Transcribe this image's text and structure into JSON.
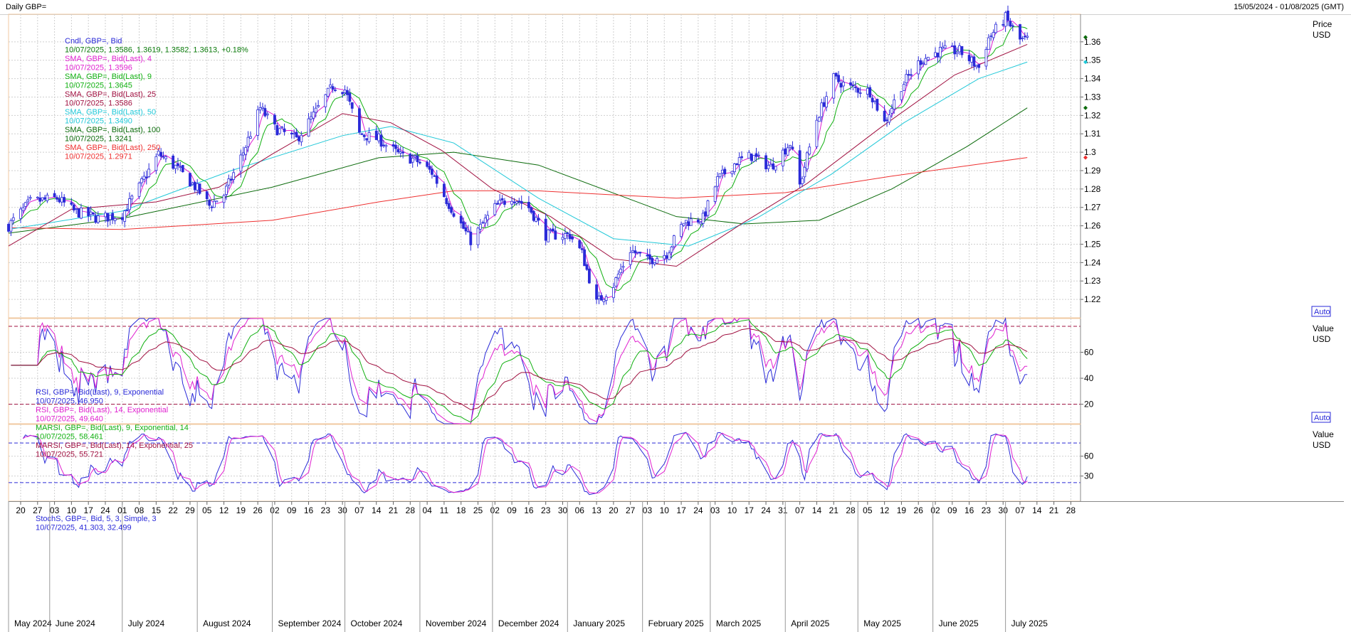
{
  "header": {
    "title": "Daily GBP=",
    "range": "15/05/2024 - 01/08/2025 (GMT)"
  },
  "chart_data": [
    {
      "type": "candlestick",
      "panel": "price",
      "unit_label": [
        "Price",
        "USD"
      ],
      "ylim": [
        1.21,
        1.375
      ],
      "yticks": [
        1.22,
        1.23,
        1.24,
        1.25,
        1.26,
        1.27,
        1.28,
        1.29,
        1.3,
        1.31,
        1.32,
        1.33,
        1.34,
        1.35,
        1.36
      ],
      "ytick_labels": [
        "1.22",
        "1.23",
        "1.24",
        "1.25",
        "1.26",
        "1.27",
        "1.28",
        "1.29",
        "1.3",
        "1.31",
        "1.32",
        "1.33",
        "1.34",
        "1.35",
        "1.36"
      ],
      "auto_label": "Auto",
      "legend": [
        {
          "name": "Cndl, GBP=, Bid",
          "value": "10/07/2025, 1.3586, 1.3619, 1.3582, 1.3613, +0.18%",
          "color": "#2a2ad8",
          "value_color": "#0a7a0a"
        },
        {
          "name": "SMA, GBP=, Bid(Last),  4",
          "value": "10/07/2025, 1.3596",
          "color": "#e020d0"
        },
        {
          "name": "SMA, GBP=, Bid(Last),  9",
          "value": "10/07/2025, 1.3645",
          "color": "#10b010"
        },
        {
          "name": "SMA, GBP=, Bid(Last),  25",
          "value": "10/07/2025, 1.3586",
          "color": "#a01040"
        },
        {
          "name": "SMA, GBP=, Bid(Last),  50",
          "value": "10/07/2025, 1.3490",
          "color": "#20c8d8"
        },
        {
          "name": "SMA, GBP=, Bid(Last),  100",
          "value": "10/07/2025, 1.3241",
          "color": "#0a6a0a"
        },
        {
          "name": "SMA, GBP=, Bid(Last),  250",
          "value": "10/07/2025, 1.2971",
          "color": "#ee3030"
        }
      ],
      "anchors": [
        {
          "x": "2024-05-15",
          "y": 1.26
        },
        {
          "x": "2024-05-24",
          "y": 1.273
        },
        {
          "x": "2024-06-04",
          "y": 1.275
        },
        {
          "x": "2024-06-11",
          "y": 1.268
        },
        {
          "x": "2024-06-21",
          "y": 1.264
        },
        {
          "x": "2024-07-01",
          "y": 1.266
        },
        {
          "x": "2024-07-08",
          "y": 1.281
        },
        {
          "x": "2024-07-16",
          "y": 1.299
        },
        {
          "x": "2024-07-23",
          "y": 1.292
        },
        {
          "x": "2024-08-01",
          "y": 1.28
        },
        {
          "x": "2024-08-06",
          "y": 1.271
        },
        {
          "x": "2024-08-12",
          "y": 1.277
        },
        {
          "x": "2024-08-20",
          "y": 1.3
        },
        {
          "x": "2024-08-27",
          "y": 1.324
        },
        {
          "x": "2024-09-02",
          "y": 1.313
        },
        {
          "x": "2024-09-11",
          "y": 1.307
        },
        {
          "x": "2024-09-18",
          "y": 1.32
        },
        {
          "x": "2024-09-26",
          "y": 1.336
        },
        {
          "x": "2024-10-01",
          "y": 1.334
        },
        {
          "x": "2024-10-07",
          "y": 1.31
        },
        {
          "x": "2024-10-15",
          "y": 1.307
        },
        {
          "x": "2024-10-24",
          "y": 1.298
        },
        {
          "x": "2024-10-30",
          "y": 1.296
        },
        {
          "x": "2024-11-06",
          "y": 1.289
        },
        {
          "x": "2024-11-12",
          "y": 1.274
        },
        {
          "x": "2024-11-22",
          "y": 1.252
        },
        {
          "x": "2024-12-02",
          "y": 1.27
        },
        {
          "x": "2024-12-09",
          "y": 1.276
        },
        {
          "x": "2024-12-16",
          "y": 1.27
        },
        {
          "x": "2024-12-23",
          "y": 1.255
        },
        {
          "x": "2025-01-02",
          "y": 1.255
        },
        {
          "x": "2025-01-07",
          "y": 1.245
        },
        {
          "x": "2025-01-13",
          "y": 1.218
        },
        {
          "x": "2025-01-20",
          "y": 1.228
        },
        {
          "x": "2025-01-27",
          "y": 1.247
        },
        {
          "x": "2025-02-03",
          "y": 1.241
        },
        {
          "x": "2025-02-11",
          "y": 1.245
        },
        {
          "x": "2025-02-18",
          "y": 1.262
        },
        {
          "x": "2025-02-26",
          "y": 1.264
        },
        {
          "x": "2025-03-04",
          "y": 1.285
        },
        {
          "x": "2025-03-12",
          "y": 1.295
        },
        {
          "x": "2025-03-18",
          "y": 1.298
        },
        {
          "x": "2025-03-26",
          "y": 1.292
        },
        {
          "x": "2025-04-03",
          "y": 1.305
        },
        {
          "x": "2025-04-07",
          "y": 1.282
        },
        {
          "x": "2025-04-14",
          "y": 1.318
        },
        {
          "x": "2025-04-21",
          "y": 1.34
        },
        {
          "x": "2025-04-28",
          "y": 1.335
        },
        {
          "x": "2025-05-06",
          "y": 1.333
        },
        {
          "x": "2025-05-12",
          "y": 1.316
        },
        {
          "x": "2025-05-19",
          "y": 1.336
        },
        {
          "x": "2025-05-27",
          "y": 1.35
        },
        {
          "x": "2025-06-04",
          "y": 1.355
        },
        {
          "x": "2025-06-12",
          "y": 1.355
        },
        {
          "x": "2025-06-20",
          "y": 1.346
        },
        {
          "x": "2025-06-24",
          "y": 1.362
        },
        {
          "x": "2025-07-01",
          "y": 1.373
        },
        {
          "x": "2025-07-07",
          "y": 1.361
        },
        {
          "x": "2025-07-10",
          "y": 1.3613
        }
      ],
      "sma": [
        {
          "name": "SMA 100",
          "color": "#0a6a0a",
          "points": [
            {
              "x": "2024-05-15",
              "y": 1.256
            },
            {
              "x": "2024-07-01",
              "y": 1.264
            },
            {
              "x": "2024-09-01",
              "y": 1.281
            },
            {
              "x": "2024-10-15",
              "y": 1.297
            },
            {
              "x": "2024-11-15",
              "y": 1.3
            },
            {
              "x": "2024-12-20",
              "y": 1.293
            },
            {
              "x": "2025-02-15",
              "y": 1.265
            },
            {
              "x": "2025-03-15",
              "y": 1.261
            },
            {
              "x": "2025-04-15",
              "y": 1.263
            },
            {
              "x": "2025-05-15",
              "y": 1.28
            },
            {
              "x": "2025-06-15",
              "y": 1.303
            },
            {
              "x": "2025-07-10",
              "y": 1.3241
            }
          ]
        },
        {
          "name": "SMA 250",
          "color": "#ee3030",
          "points": [
            {
              "x": "2024-05-15",
              "y": 1.259
            },
            {
              "x": "2024-07-01",
              "y": 1.258
            },
            {
              "x": "2024-09-01",
              "y": 1.263
            },
            {
              "x": "2024-10-15",
              "y": 1.273
            },
            {
              "x": "2024-11-15",
              "y": 1.279
            },
            {
              "x": "2024-12-20",
              "y": 1.279
            },
            {
              "x": "2025-02-15",
              "y": 1.275
            },
            {
              "x": "2025-04-01",
              "y": 1.278
            },
            {
              "x": "2025-05-15",
              "y": 1.287
            },
            {
              "x": "2025-07-10",
              "y": 1.2971
            }
          ]
        },
        {
          "name": "SMA 50",
          "color": "#20c8d8",
          "points": [
            {
              "x": "2024-05-15",
              "y": 1.258
            },
            {
              "x": "2024-07-01",
              "y": 1.268
            },
            {
              "x": "2024-08-15",
              "y": 1.29
            },
            {
              "x": "2024-09-30",
              "y": 1.309
            },
            {
              "x": "2024-10-20",
              "y": 1.314
            },
            {
              "x": "2024-11-15",
              "y": 1.305
            },
            {
              "x": "2024-12-20",
              "y": 1.275
            },
            {
              "x": "2025-01-20",
              "y": 1.253
            },
            {
              "x": "2025-02-20",
              "y": 1.249
            },
            {
              "x": "2025-03-20",
              "y": 1.264
            },
            {
              "x": "2025-04-20",
              "y": 1.288
            },
            {
              "x": "2025-05-20",
              "y": 1.316
            },
            {
              "x": "2025-06-20",
              "y": 1.34
            },
            {
              "x": "2025-07-10",
              "y": 1.349
            }
          ]
        },
        {
          "name": "SMA 25",
          "color": "#a01040",
          "points": [
            {
              "x": "2024-05-15",
              "y": 1.249
            },
            {
              "x": "2024-06-10",
              "y": 1.269
            },
            {
              "x": "2024-07-15",
              "y": 1.273
            },
            {
              "x": "2024-08-10",
              "y": 1.281
            },
            {
              "x": "2024-09-01",
              "y": 1.299
            },
            {
              "x": "2024-09-30",
              "y": 1.321
            },
            {
              "x": "2024-10-20",
              "y": 1.316
            },
            {
              "x": "2024-11-10",
              "y": 1.301
            },
            {
              "x": "2024-12-01",
              "y": 1.28
            },
            {
              "x": "2024-12-25",
              "y": 1.265
            },
            {
              "x": "2025-01-20",
              "y": 1.242
            },
            {
              "x": "2025-02-15",
              "y": 1.238
            },
            {
              "x": "2025-03-15",
              "y": 1.262
            },
            {
              "x": "2025-04-10",
              "y": 1.283
            },
            {
              "x": "2025-05-10",
              "y": 1.313
            },
            {
              "x": "2025-06-10",
              "y": 1.342
            },
            {
              "x": "2025-07-10",
              "y": 1.3586
            }
          ]
        }
      ],
      "legend_markers": [
        {
          "color": "#0a6a0a",
          "y": 1.3625
        },
        {
          "color": "#20c8d8",
          "y": 1.349
        },
        {
          "color": "#0a6a0a",
          "y": 1.3241
        },
        {
          "color": "#ee3030",
          "y": 1.2971
        }
      ]
    },
    {
      "type": "line",
      "panel": "rsi",
      "unit_label": [
        "Value",
        "USD"
      ],
      "ylim": [
        5,
        86
      ],
      "yticks": [
        20,
        40,
        60
      ],
      "ytick_labels": [
        "20",
        "40",
        "60"
      ],
      "reference_lines": [
        {
          "y": 80,
          "color": "#a01040"
        },
        {
          "y": 20,
          "color": "#a01040"
        }
      ],
      "auto_label": "Auto",
      "legend": [
        {
          "name": "RSI, GBP=, Bid(Last),  9, Exponential",
          "value": "10/07/2025, 46.950",
          "color": "#2a2ad8"
        },
        {
          "name": "RSI, GBP=, Bid(Last),  14, Exponential",
          "value": "10/07/2025, 49.640",
          "color": "#e020d0"
        },
        {
          "name": "MARSI, GBP=, Bid(Last),  9, Exponential, 14",
          "value": "10/07/2025, 58.461",
          "color": "#10b010"
        },
        {
          "name": "MARSI, GBP=, Bid(Last),  14, Exponential, 25",
          "value": "10/07/2025, 55.721",
          "color": "#a01040"
        }
      ]
    },
    {
      "type": "line",
      "panel": "stoch",
      "unit_label": [
        "Value",
        "USD"
      ],
      "ylim": [
        -8,
        108
      ],
      "yticks": [
        30,
        60
      ],
      "ytick_labels": [
        "30",
        "60"
      ],
      "reference_lines": [
        {
          "y": 80,
          "color": "#2a2ad8"
        },
        {
          "y": 20,
          "color": "#2a2ad8"
        }
      ],
      "legend": [
        {
          "name": "StochS, GBP=, Bid,  5, 3, Simple, 3",
          "value": "",
          "color": "#2a2ad8"
        },
        {
          "name": "",
          "value": "10/07/2025, 41.303, 32.499",
          "color": "#2a2ad8"
        }
      ]
    }
  ],
  "x_axis": {
    "day_ticks": [
      {
        "date": "2024-05-20",
        "label": "20"
      },
      {
        "date": "2024-05-27",
        "label": "27"
      },
      {
        "date": "2024-06-03",
        "label": "03"
      },
      {
        "date": "2024-06-10",
        "label": "10"
      },
      {
        "date": "2024-06-17",
        "label": "17"
      },
      {
        "date": "2024-06-24",
        "label": "24"
      },
      {
        "date": "2024-07-01",
        "label": "01"
      },
      {
        "date": "2024-07-08",
        "label": "08"
      },
      {
        "date": "2024-07-15",
        "label": "15"
      },
      {
        "date": "2024-07-22",
        "label": "22"
      },
      {
        "date": "2024-07-29",
        "label": "29"
      },
      {
        "date": "2024-08-05",
        "label": "05"
      },
      {
        "date": "2024-08-12",
        "label": "12"
      },
      {
        "date": "2024-08-19",
        "label": "19"
      },
      {
        "date": "2024-08-26",
        "label": "26"
      },
      {
        "date": "2024-09-02",
        "label": "02"
      },
      {
        "date": "2024-09-09",
        "label": "09"
      },
      {
        "date": "2024-09-16",
        "label": "16"
      },
      {
        "date": "2024-09-23",
        "label": "23"
      },
      {
        "date": "2024-09-30",
        "label": "30"
      },
      {
        "date": "2024-10-07",
        "label": "07"
      },
      {
        "date": "2024-10-14",
        "label": "14"
      },
      {
        "date": "2024-10-21",
        "label": "21"
      },
      {
        "date": "2024-10-28",
        "label": "28"
      },
      {
        "date": "2024-11-04",
        "label": "04"
      },
      {
        "date": "2024-11-11",
        "label": "11"
      },
      {
        "date": "2024-11-18",
        "label": "18"
      },
      {
        "date": "2024-11-25",
        "label": "25"
      },
      {
        "date": "2024-12-02",
        "label": "02"
      },
      {
        "date": "2024-12-09",
        "label": "09"
      },
      {
        "date": "2024-12-16",
        "label": "16"
      },
      {
        "date": "2024-12-23",
        "label": "23"
      },
      {
        "date": "2024-12-30",
        "label": "30"
      },
      {
        "date": "2025-01-06",
        "label": "06"
      },
      {
        "date": "2025-01-13",
        "label": "13"
      },
      {
        "date": "2025-01-20",
        "label": "20"
      },
      {
        "date": "2025-01-27",
        "label": "27"
      },
      {
        "date": "2025-02-03",
        "label": "03"
      },
      {
        "date": "2025-02-10",
        "label": "10"
      },
      {
        "date": "2025-02-17",
        "label": "17"
      },
      {
        "date": "2025-02-24",
        "label": "24"
      },
      {
        "date": "2025-03-03",
        "label": "03"
      },
      {
        "date": "2025-03-10",
        "label": "10"
      },
      {
        "date": "2025-03-17",
        "label": "17"
      },
      {
        "date": "2025-03-24",
        "label": "24"
      },
      {
        "date": "2025-03-31",
        "label": "31"
      },
      {
        "date": "2025-04-07",
        "label": "07"
      },
      {
        "date": "2025-04-14",
        "label": "14"
      },
      {
        "date": "2025-04-21",
        "label": "21"
      },
      {
        "date": "2025-04-28",
        "label": "28"
      },
      {
        "date": "2025-05-05",
        "label": "05"
      },
      {
        "date": "2025-05-12",
        "label": "12"
      },
      {
        "date": "2025-05-19",
        "label": "19"
      },
      {
        "date": "2025-05-26",
        "label": "26"
      },
      {
        "date": "2025-06-02",
        "label": "02"
      },
      {
        "date": "2025-06-09",
        "label": "09"
      },
      {
        "date": "2025-06-16",
        "label": "16"
      },
      {
        "date": "2025-06-23",
        "label": "23"
      },
      {
        "date": "2025-06-30",
        "label": "30"
      },
      {
        "date": "2025-07-07",
        "label": "07"
      },
      {
        "date": "2025-07-14",
        "label": "14"
      },
      {
        "date": "2025-07-21",
        "label": "21"
      },
      {
        "date": "2025-07-28",
        "label": "28"
      }
    ],
    "months": [
      {
        "date": "2024-05-01",
        "label": "May 2024"
      },
      {
        "date": "2024-06-01",
        "label": "June 2024"
      },
      {
        "date": "2024-07-01",
        "label": "July 2024"
      },
      {
        "date": "2024-08-01",
        "label": "August 2024"
      },
      {
        "date": "2024-09-01",
        "label": "September 2024"
      },
      {
        "date": "2024-10-01",
        "label": "October 2024"
      },
      {
        "date": "2024-11-01",
        "label": "November 2024"
      },
      {
        "date": "2024-12-01",
        "label": "December 2024"
      },
      {
        "date": "2025-01-01",
        "label": "January 2025"
      },
      {
        "date": "2025-02-01",
        "label": "February 2025"
      },
      {
        "date": "2025-03-01",
        "label": "March 2025"
      },
      {
        "date": "2025-04-01",
        "label": "April 2025"
      },
      {
        "date": "2025-05-01",
        "label": "May 2025"
      },
      {
        "date": "2025-06-01",
        "label": "June 2025"
      },
      {
        "date": "2025-07-01",
        "label": "July 2025"
      }
    ]
  }
}
